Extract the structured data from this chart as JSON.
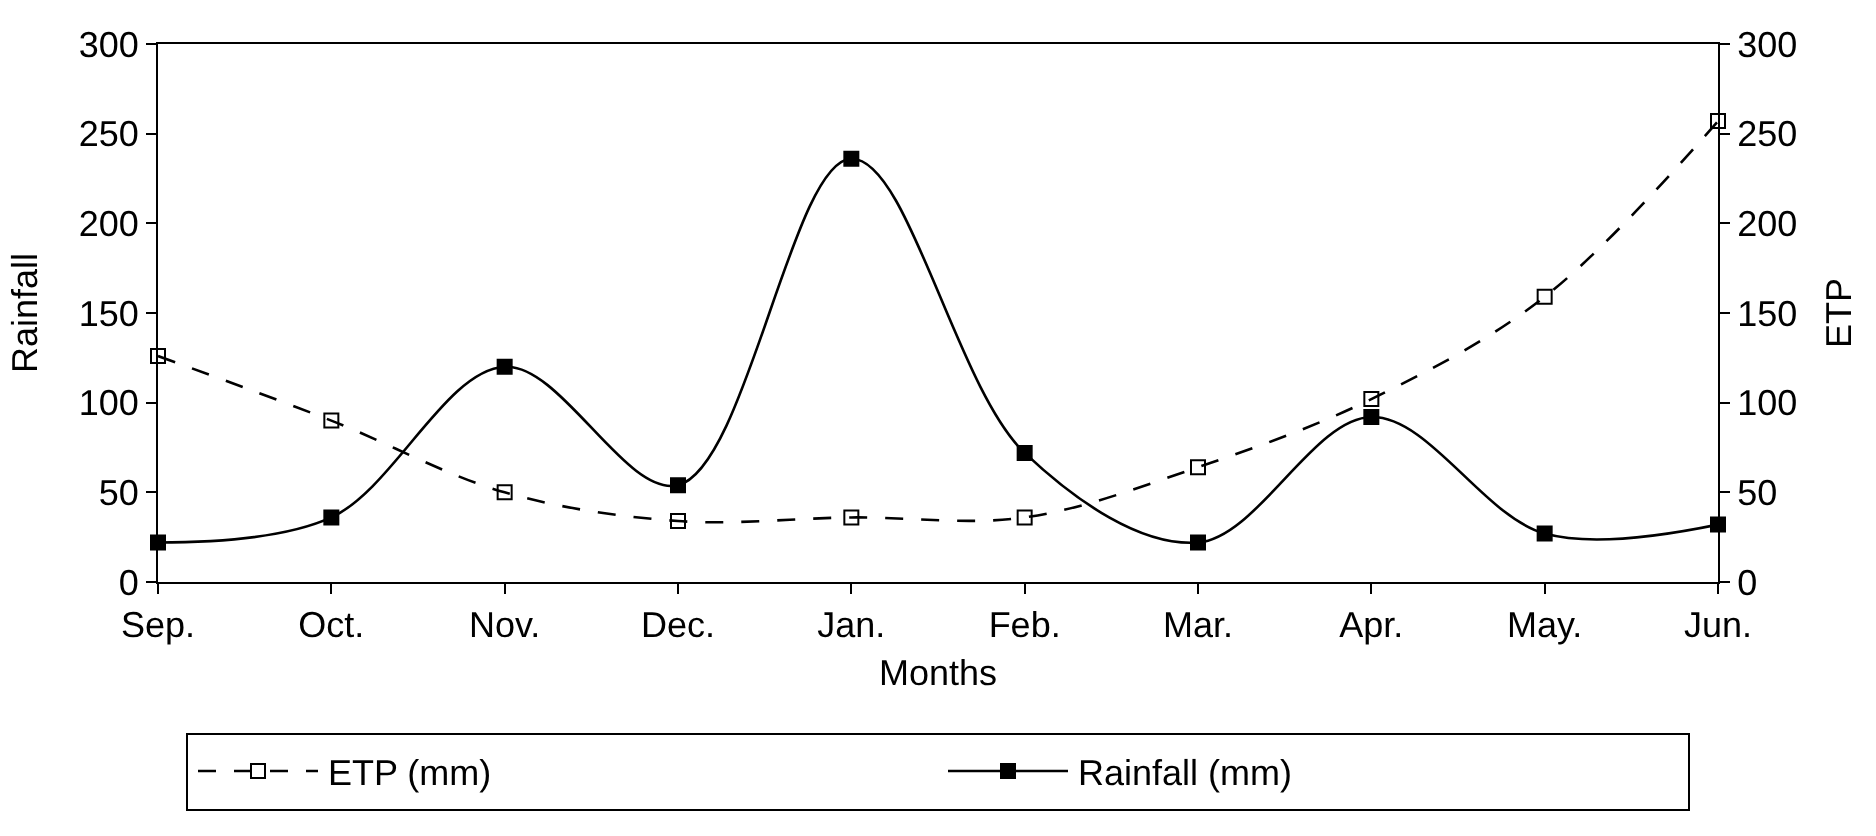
{
  "chart_data": {
    "type": "line",
    "xlabel": "Months",
    "ylabel": "Rainfall",
    "y2label": "ETP",
    "categories": [
      "Sep.",
      "Oct.",
      "Nov.",
      "Dec.",
      "Jan.",
      "Feb.",
      "Mar.",
      "Apr.",
      "May.",
      "Jun."
    ],
    "series": [
      {
        "name": "ETP (mm)",
        "color": "#000000",
        "axis": "y2",
        "line_style": "dashed",
        "marker": "square-open",
        "values": [
          126,
          90,
          50,
          34,
          36,
          36,
          64,
          102,
          159,
          257
        ]
      },
      {
        "name": "Rainfall (mm)",
        "color": "#000000",
        "line_style": "solid",
        "marker": "square",
        "values": [
          22,
          36,
          120,
          54,
          236,
          72,
          22,
          92,
          27,
          32
        ]
      }
    ],
    "ylim": [
      0,
      300
    ],
    "yticks": [
      0,
      50,
      100,
      150,
      200,
      250,
      300
    ],
    "y2lim": [
      0,
      300
    ],
    "y2ticks": [
      0,
      50,
      100,
      150,
      200,
      250,
      300
    ],
    "legend": "bottom"
  }
}
